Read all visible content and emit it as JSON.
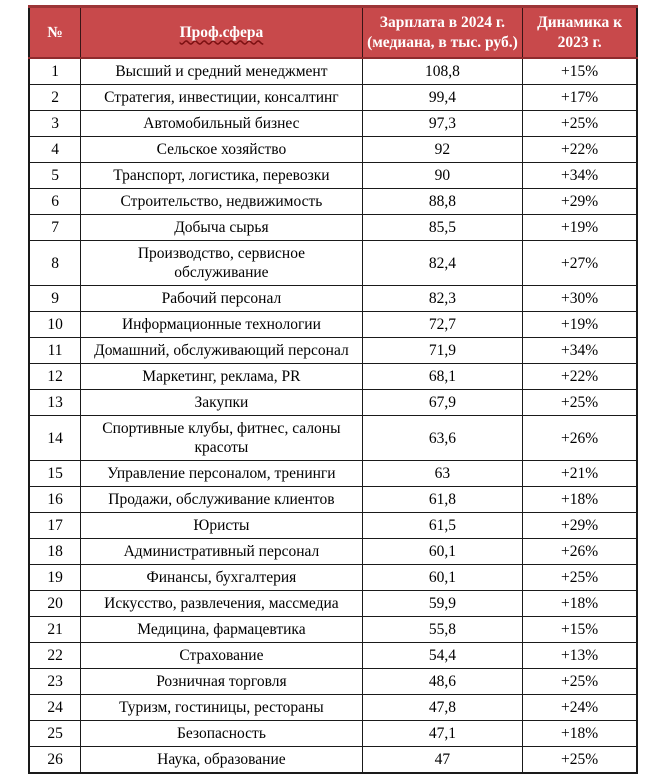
{
  "table": {
    "columns": [
      {
        "label": "№"
      },
      {
        "label": "Проф.сфера"
      },
      {
        "label": "Зарплата в 2024 г. (медиана, в тыс. руб.)",
        "line1": "Зарплата в 2024 г.",
        "line2": "(медиана, в тыс. руб.)"
      },
      {
        "label": "Динамика к 2023 г.",
        "line1": "Динамика к",
        "line2": "2023 г."
      }
    ],
    "rows": [
      {
        "num": "1",
        "sphere": "Высший и средний менеджмент",
        "salary": "108,8",
        "dynamics": "+15%"
      },
      {
        "num": "2",
        "sphere": "Стратегия, инвестиции, консалтинг",
        "salary": "99,4",
        "dynamics": "+17%"
      },
      {
        "num": "3",
        "sphere": "Автомобильный бизнес",
        "salary": "97,3",
        "dynamics": "+25%"
      },
      {
        "num": "4",
        "sphere": "Сельское хозяйство",
        "salary": "92",
        "dynamics": "+22%"
      },
      {
        "num": "5",
        "sphere": "Транспорт, логистика, перевозки",
        "salary": "90",
        "dynamics": "+34%"
      },
      {
        "num": "6",
        "sphere": "Строительство, недвижимость",
        "salary": "88,8",
        "dynamics": "+29%"
      },
      {
        "num": "7",
        "sphere": "Добыча сырья",
        "salary": "85,5",
        "dynamics": "+19%"
      },
      {
        "num": "8",
        "sphere": "Производство, сервисное обслуживание",
        "salary": "82,4",
        "dynamics": "+27%"
      },
      {
        "num": "9",
        "sphere": "Рабочий персонал",
        "salary": "82,3",
        "dynamics": "+30%"
      },
      {
        "num": "10",
        "sphere": "Информационные технологии",
        "salary": "72,7",
        "dynamics": "+19%"
      },
      {
        "num": "11",
        "sphere": "Домашний, обслуживающий персонал",
        "salary": "71,9",
        "dynamics": "+34%"
      },
      {
        "num": "12",
        "sphere": "Маркетинг, реклама, PR",
        "salary": "68,1",
        "dynamics": "+22%"
      },
      {
        "num": "13",
        "sphere": "Закупки",
        "salary": "67,9",
        "dynamics": "+25%"
      },
      {
        "num": "14",
        "sphere": "Спортивные клубы, фитнес, салоны красоты",
        "salary": "63,6",
        "dynamics": "+26%"
      },
      {
        "num": "15",
        "sphere": "Управление персоналом, тренинги",
        "salary": "63",
        "dynamics": "+21%"
      },
      {
        "num": "16",
        "sphere": "Продажи, обслуживание клиентов",
        "salary": "61,8",
        "dynamics": "+18%"
      },
      {
        "num": "17",
        "sphere": "Юристы",
        "salary": "61,5",
        "dynamics": "+29%"
      },
      {
        "num": "18",
        "sphere": "Административный персонал",
        "salary": "60,1",
        "dynamics": "+26%"
      },
      {
        "num": "19",
        "sphere": "Финансы, бухгалтерия",
        "salary": "60,1",
        "dynamics": "+25%"
      },
      {
        "num": "20",
        "sphere": "Искусство, развлечения, массмедиа",
        "salary": "59,9",
        "dynamics": "+18%"
      },
      {
        "num": "21",
        "sphere": "Медицина, фармацевтика",
        "salary": "55,8",
        "dynamics": "+15%"
      },
      {
        "num": "22",
        "sphere": "Страхование",
        "salary": "54,4",
        "dynamics": "+13%"
      },
      {
        "num": "23",
        "sphere": "Розничная торговля",
        "salary": "48,6",
        "dynamics": "+25%"
      },
      {
        "num": "24",
        "sphere": "Туризм, гостиницы, рестораны",
        "salary": "47,8",
        "dynamics": "+24%"
      },
      {
        "num": "25",
        "sphere": "Безопасность",
        "salary": "47,1",
        "dynamics": "+18%"
      },
      {
        "num": "26",
        "sphere": "Наука, образование",
        "salary": "47",
        "dynamics": "+25%"
      }
    ],
    "colors": {
      "header_bg": "#c8494b",
      "header_text": "#ffffff",
      "header_top_border": "#9c3537",
      "spellcheck_squiggle": "#7d1012",
      "body_border": "#1a1a1a",
      "body_text": "#000000"
    }
  }
}
